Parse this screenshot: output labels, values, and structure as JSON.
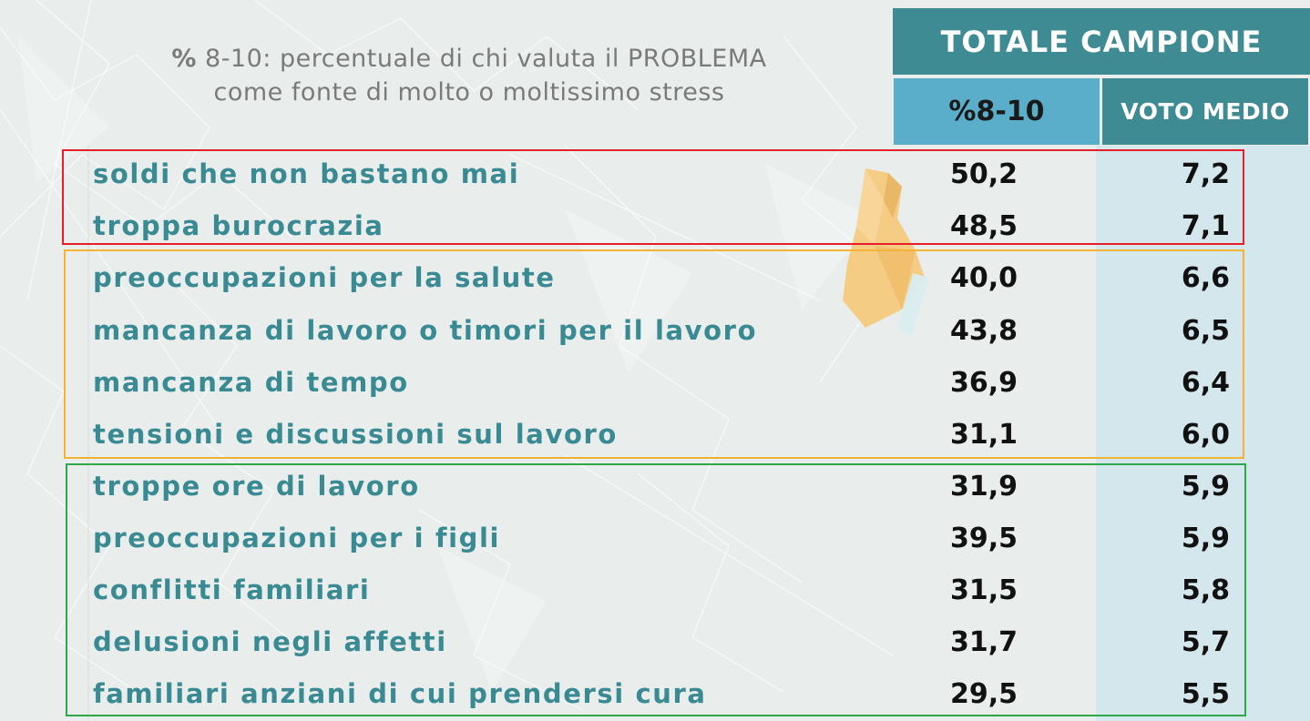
{
  "subtitle": {
    "symbol": "%",
    "line1": "8-10: percentuale di chi valuta il PROBLEMA",
    "line2": "come fonte di molto o moltissimo stress"
  },
  "header": {
    "total": "TOTALE CAMPIONE",
    "col_pct": "%8-10",
    "col_voto": "VOTO MEDIO"
  },
  "colors": {
    "teal_header": "#3f8b93",
    "blue_header": "#5aaec9",
    "label_text": "#3a8a93",
    "group_red": "#e5202a",
    "group_orange": "#f5b335",
    "group_green": "#2fa84a"
  },
  "groups": [
    {
      "name": "red",
      "color": "#e5202a"
    },
    {
      "name": "orange",
      "color": "#f5b335"
    },
    {
      "name": "green",
      "color": "#2fa84a"
    }
  ],
  "rows": [
    {
      "label": "soldi che non bastano mai",
      "pct": "50,2",
      "voto": "7,2"
    },
    {
      "label": "troppa burocrazia",
      "pct": "48,5",
      "voto": "7,1"
    },
    {
      "label": "preoccupazioni per la salute",
      "pct": "40,0",
      "voto": "6,6"
    },
    {
      "label": "mancanza di lavoro o timori per il lavoro",
      "pct": "43,8",
      "voto": "6,5"
    },
    {
      "label": "mancanza di tempo",
      "pct": "36,9",
      "voto": "6,4"
    },
    {
      "label": "tensioni e discussioni sul lavoro",
      "pct": "31,1",
      "voto": "6,0"
    },
    {
      "label": "troppe ore di lavoro",
      "pct": "31,9",
      "voto": "5,9"
    },
    {
      "label": "preoccupazioni per i figli",
      "pct": "39,5",
      "voto": "5,9"
    },
    {
      "label": "conflitti familiari",
      "pct": "31,5",
      "voto": "5,8"
    },
    {
      "label": "delusioni negli affetti",
      "pct": "31,7",
      "voto": "5,7"
    },
    {
      "label": "familiari anziani di cui prendersi cura",
      "pct": "29,5",
      "voto": "5,5"
    }
  ]
}
